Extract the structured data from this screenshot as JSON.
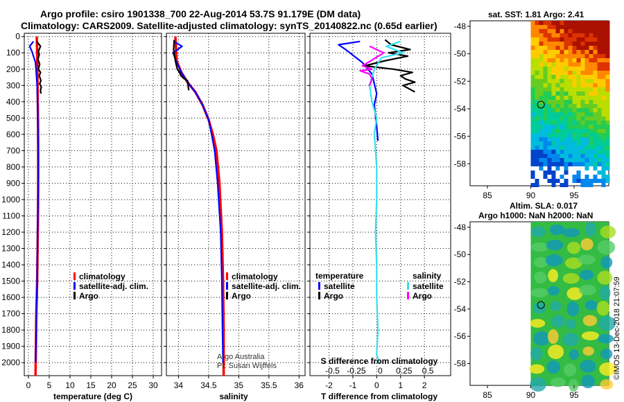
{
  "header": {
    "line1": "Argo profile: csiro 1901338_700 22-Aug-2014 53.7S 91.179E (DM data)",
    "line2": "Climatology: CARS2009. Satellite-adjusted climatology: synTS_20140822.nc (0.65d earlier)"
  },
  "chart_data": [
    {
      "type": "line",
      "id": "temperature",
      "xlabel": "temperature (deg C)",
      "ylabel": "depth",
      "xlim": [
        -1,
        32
      ],
      "ylim": [
        2080,
        -20
      ],
      "xticks": [
        0,
        5,
        10,
        15,
        20,
        25,
        30
      ],
      "yticks": [
        0,
        100,
        200,
        300,
        400,
        500,
        600,
        700,
        800,
        900,
        1000,
        1100,
        1200,
        1300,
        1400,
        1500,
        1600,
        1700,
        1800,
        1900,
        2000
      ],
      "legend": [
        "climatology",
        "satellite-adj. clim.",
        "Argo"
      ],
      "series": [
        {
          "name": "climatology",
          "color": "#ff0000",
          "x": [
            2.0,
            2.1,
            2.2,
            2.3,
            2.35,
            2.35,
            2.3,
            2.2,
            2.1,
            1.9,
            1.8,
            1.7
          ],
          "depth": [
            0,
            100,
            300,
            500,
            700,
            900,
            1100,
            1300,
            1500,
            1700,
            1900,
            2080
          ]
        },
        {
          "name": "satellite-adj. clim.",
          "color": "#0000ff",
          "x": [
            1.2,
            0.3,
            0.9,
            1.7,
            2.1,
            2.2,
            2.3,
            2.35,
            2.3,
            2.2,
            2.1,
            1.9,
            1.8,
            1.7
          ],
          "depth": [
            30,
            60,
            95,
            160,
            300,
            400,
            600,
            800,
            1000,
            1200,
            1500,
            1700,
            1900,
            2000
          ]
        },
        {
          "name": "Argo",
          "color": "#000000",
          "x": [
            2.0,
            2.9,
            2.4,
            2.6,
            2.3,
            2.7,
            2.4,
            2.9,
            2.6,
            3.0,
            2.7,
            3.1,
            2.9,
            3.0
          ],
          "depth": [
            30,
            60,
            90,
            110,
            140,
            170,
            200,
            220,
            240,
            270,
            290,
            310,
            330,
            350
          ]
        }
      ]
    },
    {
      "type": "line",
      "id": "salinity",
      "xlabel": "salinity",
      "xlim": [
        33.8,
        36.1
      ],
      "ylim": [
        2080,
        -20
      ],
      "xticks": [
        34,
        34.5,
        35,
        35.5,
        36
      ],
      "xticklabels": [
        "34",
        "34.5",
        "35",
        "35.5",
        "36"
      ],
      "legend": [
        "climatology",
        "satellite-adj. clim.",
        "Argo"
      ],
      "annotation": [
        "Argo Australia",
        "PI: Susan Wijffels"
      ],
      "series": [
        {
          "name": "climatology",
          "color": "#ff0000",
          "x": [
            33.95,
            33.97,
            34.05,
            34.15,
            34.28,
            34.4,
            34.5,
            34.57,
            34.63,
            34.68,
            34.72,
            34.74,
            34.75,
            34.75
          ],
          "depth": [
            0,
            150,
            220,
            280,
            340,
            420,
            510,
            600,
            700,
            900,
            1200,
            1500,
            1800,
            2080
          ]
        },
        {
          "name": "satellite-adj. clim.",
          "color": "#0000ff",
          "x": [
            33.92,
            34.06,
            33.91,
            33.96,
            34.05,
            34.15,
            34.28,
            34.4,
            34.5,
            34.55,
            34.6,
            34.65,
            34.7,
            34.72,
            34.73,
            34.74
          ],
          "depth": [
            30,
            60,
            100,
            150,
            220,
            280,
            340,
            420,
            510,
            600,
            700,
            900,
            1200,
            1500,
            1800,
            2000
          ]
        },
        {
          "name": "Argo",
          "color": "#000000",
          "x": [
            33.93,
            33.92,
            33.95,
            33.98,
            34.02,
            34.04,
            34.1,
            34.15,
            34.16,
            34.17
          ],
          "depth": [
            20,
            80,
            150,
            200,
            220,
            240,
            260,
            270,
            300,
            330
          ]
        }
      ]
    },
    {
      "type": "line",
      "id": "differences",
      "xlabel": "T difference from climatology",
      "x2label": "S difference from climatology",
      "xlim": [
        -2.8,
        3.1
      ],
      "xticks": [
        -2,
        -1,
        0,
        1,
        2
      ],
      "x2ticklabels": [
        "-0.5",
        "-0.25",
        "0",
        "0.25",
        "0.5"
      ],
      "ylim": [
        2080,
        -20
      ],
      "legend_temperature": {
        "title": "temperature",
        "items": [
          "satellite",
          "Argo"
        ]
      },
      "legend_salinity": {
        "title": "salinity",
        "items": [
          "satellite",
          "Argo"
        ]
      },
      "series": [
        {
          "name": "temperature satellite",
          "color": "#0000ff",
          "x": [
            -0.7,
            -1.6,
            -1.3,
            -0.6,
            -0.2,
            0.0,
            -0.1,
            0.0,
            0.05
          ],
          "depth": [
            30,
            50,
            80,
            160,
            230,
            350,
            420,
            550,
            640
          ]
        },
        {
          "name": "temperature Argo",
          "color": "#000000",
          "x": [
            0.35,
            0.6,
            1.4,
            0.5,
            1.3,
            0.3,
            -0.5,
            0.7,
            1.5,
            1.0,
            1.2,
            1.6,
            1.1,
            1.6
          ],
          "depth": [
            20,
            50,
            80,
            100,
            120,
            150,
            180,
            200,
            220,
            240,
            260,
            280,
            300,
            340
          ]
        },
        {
          "name": "salinity satellite",
          "color": "#33e0f0",
          "x": [
            1.0,
            0.4,
            1.1,
            0.2,
            -0.1,
            -0.3,
            -0.2,
            0.0,
            -0.1,
            0.0,
            0.0,
            -0.05,
            0.0,
            0.0,
            0.05,
            0.0,
            0.1
          ],
          "depth": [
            30,
            60,
            100,
            130,
            200,
            300,
            400,
            500,
            600,
            800,
            1000,
            1200,
            1400,
            1600,
            1800,
            1950,
            2000
          ]
        },
        {
          "name": "salinity Argo",
          "color": "#ff00ff",
          "x": [
            -0.3,
            0.3,
            -0.6,
            -0.2,
            -0.7,
            -0.3,
            -0.2,
            -0.3
          ],
          "depth": [
            60,
            100,
            180,
            200,
            210,
            230,
            260,
            300
          ]
        }
      ]
    }
  ],
  "maps": {
    "sst": {
      "title": "sat. SST: 1.81 Argo: 2.41",
      "yticks": [
        -48,
        -50,
        -52,
        -54,
        -56,
        -58
      ],
      "xticks": [
        85,
        90,
        95
      ],
      "lon_range": [
        83,
        99
      ],
      "lat_range": [
        -59.6,
        -47.6
      ],
      "marker": {
        "lon": 91.179,
        "lat": -53.7
      }
    },
    "sla": {
      "title_line1": "Altim. SLA: 0.017",
      "title_line2": "Argo h1000: NaN h2000: NaN",
      "yticks": [
        -48,
        -50,
        -52,
        -54,
        -56,
        -58
      ],
      "xticks": [
        85,
        90,
        95
      ],
      "lon_range": [
        83,
        99
      ],
      "lat_range": [
        -59.6,
        -47.6
      ],
      "marker": {
        "lon": 91.179,
        "lat": -53.7
      }
    }
  },
  "footer": {
    "credit": "©IMOS 13-Dec-2018 21:07:59"
  },
  "colors": {
    "climatology": "#ff0000",
    "satellite": "#0000ff",
    "argo": "#000000",
    "sal_satellite": "#33e0f0",
    "sal_argo": "#ff00ff"
  }
}
